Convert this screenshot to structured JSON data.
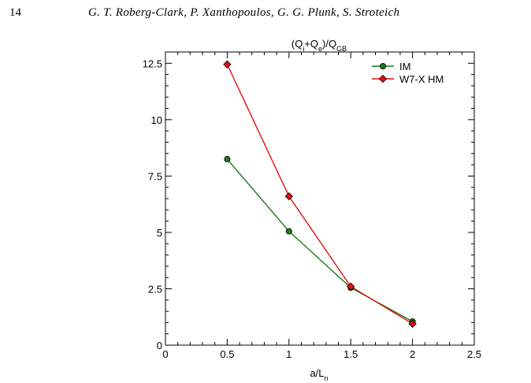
{
  "header": {
    "page_number": "14",
    "authors": "G. T. Roberg-Clark, P. Xanthopoulos, G. G. Plunk, S. Stroteich"
  },
  "chart_data": {
    "type": "line",
    "title": {
      "base": "(Q",
      "sub1": "i",
      "mid1": "+Q",
      "sub2": "e",
      "mid2": ")/Q",
      "sub3": "GB"
    },
    "xlabel": {
      "base": "a/L",
      "sub": "n"
    },
    "ylabel": "",
    "xlim": [
      0,
      2.5
    ],
    "ylim": [
      0,
      13
    ],
    "xticks": [
      0,
      0.5,
      1,
      1.5,
      2,
      2.5
    ],
    "xtick_labels": [
      "0",
      "0.5",
      "1",
      "1.5",
      "2",
      "2.5"
    ],
    "yticks": [
      0,
      2.5,
      5,
      7.5,
      10,
      12.5
    ],
    "ytick_labels": [
      "0",
      "2.5",
      "5",
      "7.5",
      "10",
      "12.5"
    ],
    "grid": false,
    "legend_position": "top-right",
    "series": [
      {
        "name": "IM",
        "color": "#1a7a1a",
        "marker": "circle",
        "x": [
          0.5,
          1,
          1.5,
          2
        ],
        "y": [
          8.25,
          5.05,
          2.55,
          1.05
        ]
      },
      {
        "name": "W7-X HM",
        "color": "#e01010",
        "marker": "diamond",
        "x": [
          0.5,
          1,
          1.5,
          2
        ],
        "y": [
          12.45,
          6.6,
          2.6,
          0.95
        ]
      }
    ]
  }
}
